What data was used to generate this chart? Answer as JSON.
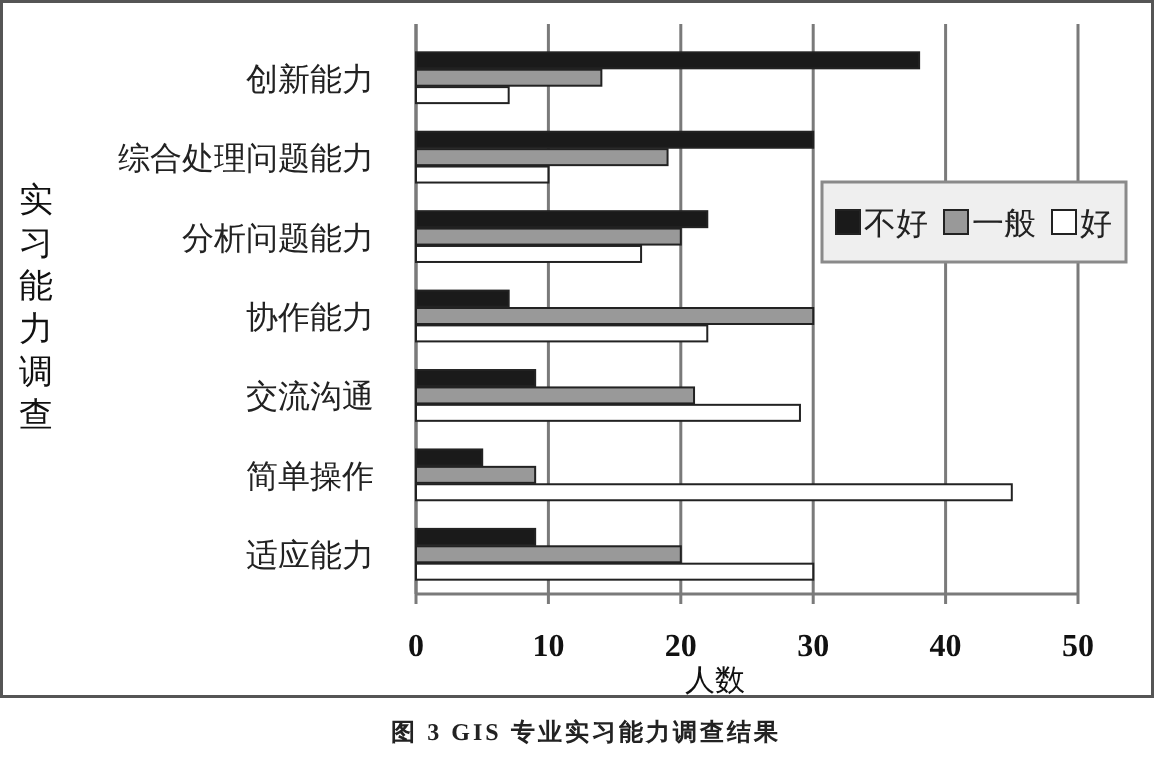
{
  "chart_data": {
    "type": "bar",
    "orientation": "horizontal",
    "categories": [
      "创新能力",
      "综合处理问题能力",
      "分析问题能力",
      "协作能力",
      "交流沟通",
      "简单操作",
      "适应能力"
    ],
    "series": [
      {
        "name": "不好",
        "color": "#1a1a1a",
        "values": [
          38,
          30,
          22,
          7,
          9,
          5,
          9
        ]
      },
      {
        "name": "一般",
        "color": "#999999",
        "values": [
          14,
          19,
          20,
          30,
          21,
          9,
          20
        ]
      },
      {
        "name": "好",
        "color": "#ffffff",
        "values": [
          7,
          10,
          17,
          22,
          29,
          45,
          30
        ]
      }
    ],
    "xlim": [
      0,
      50
    ],
    "xticks": [
      0,
      10,
      20,
      30,
      40,
      50
    ],
    "xlabel": "人数",
    "ylabel": "实习能力调查",
    "annotations": [
      "图 3 GIS 专业实习能力调查结果"
    ],
    "grid": "x",
    "legend": "right"
  }
}
